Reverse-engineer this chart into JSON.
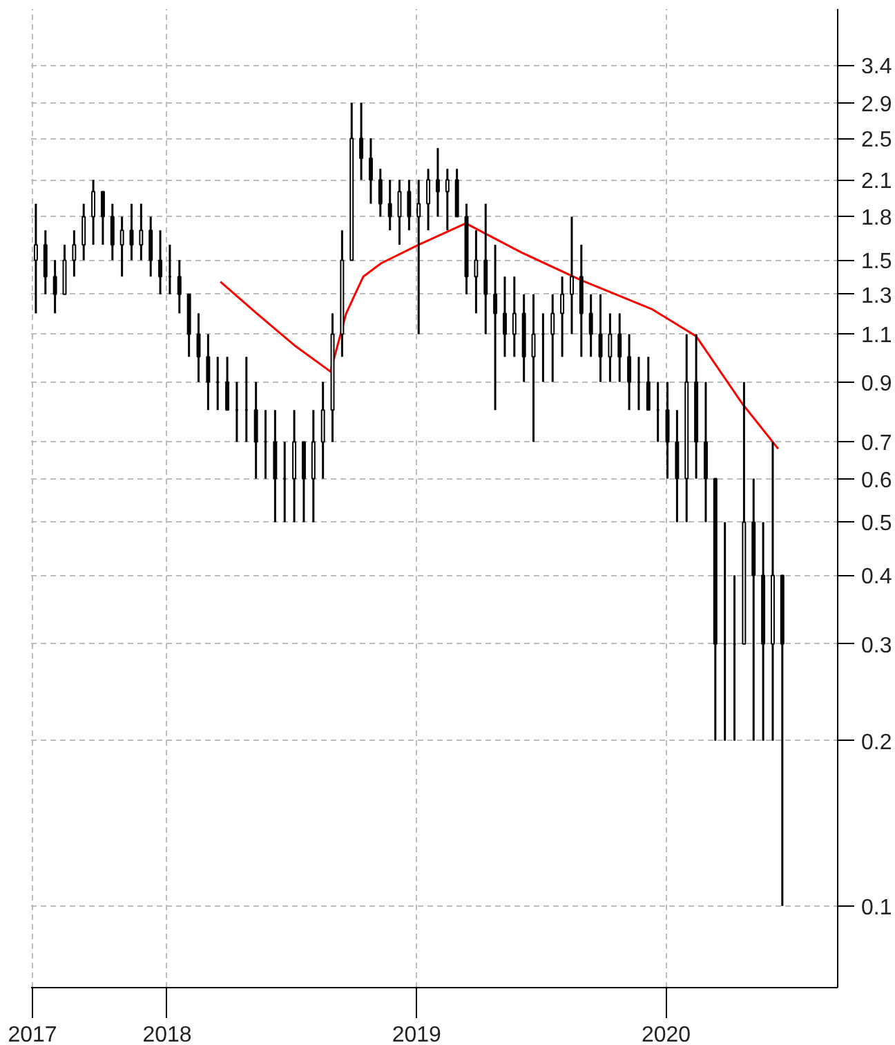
{
  "chart_data": {
    "type": "candlestick",
    "x": [
      "2017-06-23",
      "2017-07-07",
      "2017-07-21",
      "2017-08-04",
      "2017-08-18",
      "2017-09-01",
      "2017-09-15",
      "2017-09-29",
      "2017-10-13",
      "2017-10-27",
      "2017-11-10",
      "2017-11-24",
      "2017-12-08",
      "2017-12-22",
      "2018-01-05",
      "2018-01-19",
      "2018-02-02",
      "2018-02-16",
      "2018-03-02",
      "2018-03-16",
      "2018-03-30",
      "2018-04-13",
      "2018-04-27",
      "2018-05-11",
      "2018-05-25",
      "2018-06-08",
      "2018-06-22",
      "2018-07-06",
      "2018-07-20",
      "2018-08-03",
      "2018-08-17",
      "2018-08-31",
      "2018-09-14",
      "2018-09-28",
      "2018-10-12",
      "2018-10-26",
      "2018-11-09",
      "2018-11-23",
      "2018-12-07",
      "2018-12-21",
      "2019-01-04",
      "2019-01-18",
      "2019-02-01",
      "2019-02-15",
      "2019-03-01",
      "2019-03-15",
      "2019-03-29",
      "2019-04-12",
      "2019-04-26",
      "2019-05-10",
      "2019-05-24",
      "2019-06-07",
      "2019-06-21",
      "2019-07-05",
      "2019-07-19",
      "2019-08-02",
      "2019-08-16",
      "2019-08-30",
      "2019-09-13",
      "2019-09-27",
      "2019-10-11",
      "2019-10-25",
      "2019-11-08",
      "2019-11-22",
      "2019-12-06",
      "2019-12-20",
      "2020-01-03",
      "2020-01-17",
      "2020-01-31",
      "2020-02-14",
      "2020-02-28",
      "2020-03-13",
      "2020-03-27",
      "2020-04-10",
      "2020-04-24",
      "2020-05-08",
      "2020-05-22",
      "2020-06-05",
      "2020-06-19"
    ],
    "ohlc": [
      [
        1.5,
        1.9,
        1.2,
        1.6
      ],
      [
        1.6,
        1.7,
        1.3,
        1.4
      ],
      [
        1.4,
        1.5,
        1.2,
        1.3
      ],
      [
        1.3,
        1.6,
        1.3,
        1.5
      ],
      [
        1.5,
        1.7,
        1.4,
        1.6
      ],
      [
        1.6,
        1.9,
        1.5,
        1.8
      ],
      [
        1.8,
        2.1,
        1.6,
        2.0
      ],
      [
        2.0,
        2.0,
        1.6,
        1.8
      ],
      [
        1.8,
        1.9,
        1.5,
        1.6
      ],
      [
        1.6,
        1.8,
        1.4,
        1.7
      ],
      [
        1.7,
        1.9,
        1.5,
        1.6
      ],
      [
        1.6,
        1.9,
        1.5,
        1.7
      ],
      [
        1.7,
        1.8,
        1.4,
        1.5
      ],
      [
        1.5,
        1.7,
        1.3,
        1.4
      ],
      [
        1.4,
        1.6,
        1.3,
        1.4
      ],
      [
        1.4,
        1.5,
        1.2,
        1.3
      ],
      [
        1.3,
        1.3,
        1.0,
        1.1
      ],
      [
        1.1,
        1.2,
        0.9,
        1.0
      ],
      [
        1.0,
        1.1,
        0.8,
        0.9
      ],
      [
        0.9,
        1.0,
        0.8,
        0.9
      ],
      [
        0.9,
        1.0,
        0.8,
        0.8
      ],
      [
        0.8,
        0.9,
        0.7,
        0.8
      ],
      [
        0.8,
        1.0,
        0.7,
        0.8
      ],
      [
        0.8,
        0.9,
        0.6,
        0.7
      ],
      [
        0.7,
        0.8,
        0.6,
        0.7
      ],
      [
        0.7,
        0.8,
        0.5,
        0.6
      ],
      [
        0.6,
        0.7,
        0.5,
        0.6
      ],
      [
        0.6,
        0.8,
        0.5,
        0.7
      ],
      [
        0.7,
        0.7,
        0.5,
        0.6
      ],
      [
        0.6,
        0.8,
        0.5,
        0.7
      ],
      [
        0.7,
        0.9,
        0.6,
        0.8
      ],
      [
        0.8,
        1.2,
        0.7,
        1.1
      ],
      [
        1.1,
        1.7,
        1.0,
        1.5
      ],
      [
        1.5,
        2.9,
        1.5,
        2.5
      ],
      [
        2.5,
        2.9,
        2.1,
        2.3
      ],
      [
        2.3,
        2.5,
        1.9,
        2.1
      ],
      [
        2.1,
        2.2,
        1.8,
        1.9
      ],
      [
        1.9,
        2.1,
        1.7,
        1.8
      ],
      [
        1.8,
        2.1,
        1.6,
        2.0
      ],
      [
        2.0,
        2.1,
        1.7,
        1.8
      ],
      [
        1.8,
        2.1,
        1.1,
        1.9
      ],
      [
        1.9,
        2.2,
        1.7,
        2.1
      ],
      [
        2.1,
        2.4,
        1.8,
        2.0
      ],
      [
        2.0,
        2.2,
        1.7,
        2.1
      ],
      [
        2.1,
        2.2,
        1.8,
        1.8
      ],
      [
        1.8,
        1.9,
        1.3,
        1.4
      ],
      [
        1.4,
        1.7,
        1.2,
        1.5
      ],
      [
        1.5,
        1.9,
        1.1,
        1.3
      ],
      [
        1.3,
        1.6,
        0.8,
        1.2
      ],
      [
        1.2,
        1.4,
        1.0,
        1.1
      ],
      [
        1.1,
        1.4,
        1.0,
        1.2
      ],
      [
        1.2,
        1.3,
        0.9,
        1.0
      ],
      [
        1.0,
        1.3,
        0.7,
        1.1
      ],
      [
        1.1,
        1.2,
        0.9,
        1.1
      ],
      [
        1.1,
        1.3,
        0.9,
        1.2
      ],
      [
        1.2,
        1.4,
        1.0,
        1.3
      ],
      [
        1.3,
        1.8,
        1.1,
        1.4
      ],
      [
        1.4,
        1.6,
        1.0,
        1.2
      ],
      [
        1.2,
        1.3,
        1.0,
        1.1
      ],
      [
        1.1,
        1.3,
        0.9,
        1.0
      ],
      [
        1.0,
        1.2,
        0.9,
        1.1
      ],
      [
        1.1,
        1.2,
        0.9,
        1.0
      ],
      [
        1.0,
        1.1,
        0.8,
        0.9
      ],
      [
        0.9,
        1.0,
        0.8,
        0.9
      ],
      [
        0.9,
        1.0,
        0.8,
        0.8
      ],
      [
        0.8,
        0.9,
        0.7,
        0.8
      ],
      [
        0.8,
        0.9,
        0.6,
        0.7
      ],
      [
        0.7,
        0.8,
        0.5,
        0.6
      ],
      [
        0.6,
        1.1,
        0.5,
        0.9
      ],
      [
        0.9,
        1.1,
        0.6,
        0.7
      ],
      [
        0.7,
        0.9,
        0.5,
        0.6
      ],
      [
        0.6,
        0.6,
        0.2,
        0.3
      ],
      [
        0.3,
        0.5,
        0.2,
        0.3
      ],
      [
        0.3,
        0.4,
        0.2,
        0.3
      ],
      [
        0.3,
        0.9,
        0.3,
        0.5
      ],
      [
        0.5,
        0.6,
        0.2,
        0.4
      ],
      [
        0.4,
        0.5,
        0.2,
        0.3
      ],
      [
        0.3,
        0.7,
        0.2,
        0.4
      ],
      [
        0.4,
        0.4,
        0.1,
        0.3
      ]
    ],
    "series": [
      {
        "type": "line",
        "color": "#ff0000",
        "x": [
          "2018-03-20",
          "2018-05-12",
          "2018-07-06",
          "2018-08-28",
          "2018-09-20",
          "2018-10-15",
          "2018-11-10",
          "2019-01-04",
          "2019-03-14",
          "2019-06-03",
          "2019-08-29",
          "2019-12-12",
          "2020-02-14",
          "2020-04-22",
          "2020-06-13"
        ],
        "values": [
          1.37,
          1.2,
          1.05,
          0.94,
          1.2,
          1.4,
          1.48,
          1.6,
          1.75,
          1.55,
          1.38,
          1.22,
          1.09,
          0.82,
          0.68
        ]
      }
    ],
    "log": true,
    "xlim": [
      "2017-06-16",
      "2020-09-08"
    ],
    "xticks": [
      {
        "value": "2017-06-18",
        "label": "2017"
      },
      {
        "value": "2018-01-01",
        "label": "2018"
      },
      {
        "value": "2019-01-01",
        "label": "2019"
      },
      {
        "value": "2020-01-01",
        "label": "2020"
      }
    ],
    "ylim": [
      0.071,
      4.3
    ],
    "yticks": [
      0.1,
      0.2,
      0.3,
      0.4,
      0.5,
      0.6,
      0.7,
      0.9,
      1.1,
      1.3,
      1.5,
      1.8,
      2.1,
      2.5,
      2.9,
      3.4
    ],
    "grid": true
  }
}
